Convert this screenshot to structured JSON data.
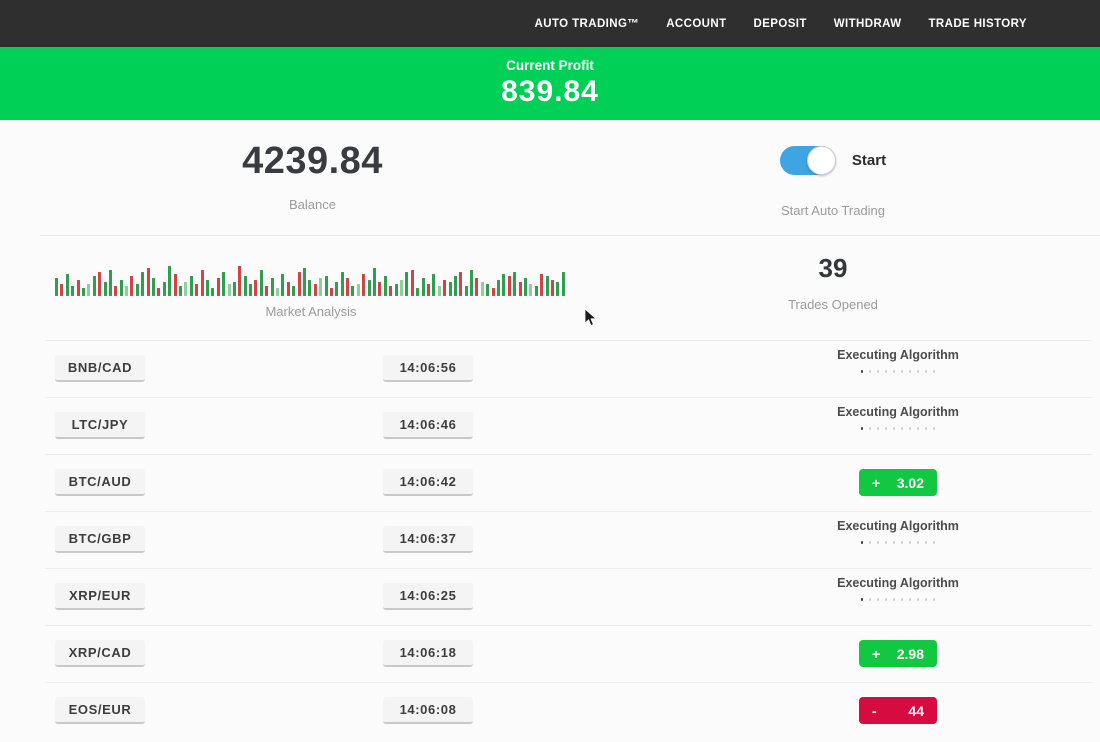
{
  "navbar": {
    "items": [
      {
        "label": "AUTO TRADING™"
      },
      {
        "label": "ACCOUNT"
      },
      {
        "label": "DEPOSIT"
      },
      {
        "label": "WITHDRAW"
      },
      {
        "label": "TRADE HISTORY"
      }
    ],
    "bg_color": "#302f2f"
  },
  "profit_banner": {
    "label": "Current Profit",
    "value": "839.84",
    "bg_color": "#00d156"
  },
  "summary": {
    "balance": {
      "value": "4239.84",
      "label": "Balance"
    },
    "auto_trading": {
      "toggle_state": "on",
      "toggle_color": "#3fa5e2",
      "toggle_label": "Start",
      "caption": "Start Auto Trading"
    },
    "market_analysis": {
      "label": "Market Analysis",
      "bar_colors": {
        "g": "#2f9e4e",
        "G": "#8fcf9e",
        "r": "#d14444",
        "R": "#e89c9c"
      },
      "bars": [
        "g18",
        "r12",
        "g22",
        "g10",
        "r16",
        "g8",
        "G12",
        "g20",
        "r24",
        "g14",
        "g26",
        "r10",
        "g16",
        "G10",
        "r20",
        "g12",
        "g24",
        "r28",
        "g18",
        "r8",
        "g14",
        "g30",
        "r22",
        "g10",
        "G14",
        "g20",
        "r12",
        "r26",
        "g16",
        "g8",
        "r18",
        "g24",
        "G12",
        "g14",
        "r30",
        "g20",
        "g12",
        "r16",
        "g26",
        "r10",
        "g18",
        "G8",
        "g22",
        "r14",
        "g10",
        "r24",
        "g28",
        "g16",
        "r12",
        "G18",
        "g20",
        "r8",
        "g14",
        "g24",
        "r18",
        "g10",
        "G12",
        "r22",
        "g16",
        "g28",
        "r14",
        "g20",
        "r10",
        "g12",
        "G16",
        "g24",
        "r26",
        "g8",
        "g18",
        "r12",
        "g22",
        "G10",
        "r16",
        "g14",
        "g20",
        "r24",
        "g10",
        "g26",
        "r18",
        "G14",
        "g12",
        "r8",
        "g16",
        "g22",
        "r20",
        "g24",
        "r14",
        "g18",
        "G12",
        "g10",
        "r22",
        "g20",
        "r16",
        "g14",
        "g24"
      ]
    },
    "trades_opened": {
      "value": "39",
      "label": "Trades Opened"
    }
  },
  "trades": {
    "executing_label": "Executing Algorithm",
    "progress_dots": {
      "count": 10,
      "active_index": 0
    },
    "status_colors": {
      "profit": "#12c843",
      "loss": "#d60b40"
    },
    "rows": [
      {
        "pair": "BNB/CAD",
        "time": "14:06:56",
        "status": "executing",
        "sign": "",
        "amount": ""
      },
      {
        "pair": "LTC/JPY",
        "time": "14:06:46",
        "status": "executing",
        "sign": "",
        "amount": ""
      },
      {
        "pair": "BTC/AUD",
        "time": "14:06:42",
        "status": "profit",
        "sign": "+",
        "amount": "3.02"
      },
      {
        "pair": "BTC/GBP",
        "time": "14:06:37",
        "status": "executing",
        "sign": "",
        "amount": ""
      },
      {
        "pair": "XRP/EUR",
        "time": "14:06:25",
        "status": "executing",
        "sign": "",
        "amount": ""
      },
      {
        "pair": "XRP/CAD",
        "time": "14:06:18",
        "status": "profit",
        "sign": "+",
        "amount": "2.98"
      },
      {
        "pair": "EOS/EUR",
        "time": "14:06:08",
        "status": "loss",
        "sign": "-",
        "amount": "44"
      }
    ]
  }
}
